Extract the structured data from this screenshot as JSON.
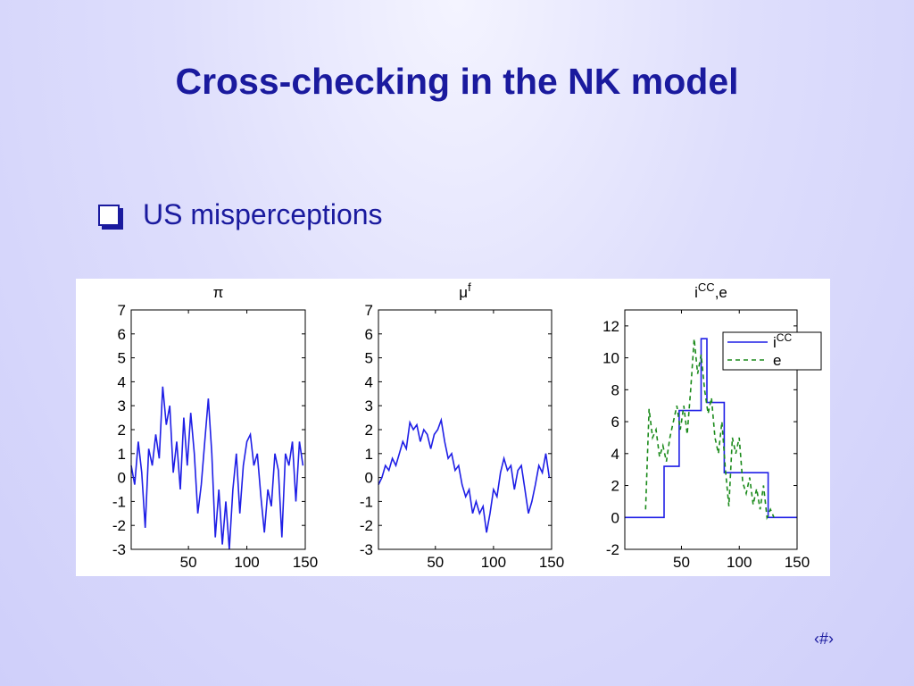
{
  "slide": {
    "title": "Cross-checking in the NK model",
    "bullet": "US misperceptions",
    "footer": "‹#›"
  },
  "chart_data": [
    {
      "type": "line",
      "title": [
        {
          "text": "π",
          "sup": false
        }
      ],
      "xlim": [
        1,
        150
      ],
      "xticks": [
        50,
        100,
        150
      ],
      "ylim": [
        -3,
        7
      ],
      "yticks": [
        -3,
        -2,
        -1,
        0,
        1,
        2,
        3,
        4,
        5,
        6,
        7
      ],
      "series": [
        {
          "color": "#1f1fe6",
          "dash": false,
          "x": [
            1,
            4,
            7,
            10,
            13,
            16,
            19,
            22,
            25,
            28,
            31,
            34,
            37,
            40,
            43,
            46,
            49,
            52,
            55,
            58,
            61,
            64,
            67,
            70,
            73,
            76,
            79,
            82,
            85,
            88,
            91,
            94,
            97,
            100,
            103,
            106,
            109,
            112,
            115,
            118,
            121,
            124,
            127,
            130,
            133,
            136,
            139,
            142,
            145,
            148
          ],
          "values": [
            0.5,
            -0.3,
            1.5,
            0.2,
            -2.1,
            1.2,
            0.5,
            1.8,
            0.8,
            3.8,
            2.2,
            3.0,
            0.2,
            1.5,
            -0.5,
            2.5,
            0.5,
            2.7,
            1.0,
            -1.5,
            -0.3,
            1.5,
            3.3,
            1.0,
            -2.5,
            -0.5,
            -2.8,
            -1.0,
            -3.0,
            -0.5,
            1.0,
            -1.5,
            0.5,
            1.5,
            1.8,
            0.5,
            1.0,
            -0.8,
            -2.3,
            -0.5,
            -1.2,
            1.0,
            0.3,
            -2.5,
            1.0,
            0.5,
            1.5,
            -1.0,
            1.5,
            0.5
          ]
        }
      ]
    },
    {
      "type": "line",
      "title": [
        {
          "text": "μ",
          "sup": false
        },
        {
          "text": "f",
          "sup": true
        }
      ],
      "xlim": [
        1,
        150
      ],
      "xticks": [
        50,
        100,
        150
      ],
      "ylim": [
        -3,
        7
      ],
      "yticks": [
        -3,
        -2,
        -1,
        0,
        1,
        2,
        3,
        4,
        5,
        6,
        7
      ],
      "series": [
        {
          "color": "#1f1fe6",
          "dash": false,
          "x": [
            1,
            4,
            7,
            10,
            13,
            16,
            19,
            22,
            25,
            28,
            31,
            34,
            37,
            40,
            43,
            46,
            49,
            52,
            55,
            58,
            61,
            64,
            67,
            70,
            73,
            76,
            79,
            82,
            85,
            88,
            91,
            94,
            97,
            100,
            103,
            106,
            109,
            112,
            115,
            118,
            121,
            124,
            127,
            130,
            133,
            136,
            139,
            142,
            145,
            148
          ],
          "values": [
            -0.3,
            0.0,
            0.5,
            0.3,
            0.8,
            0.5,
            1.0,
            1.5,
            1.2,
            2.3,
            2.0,
            2.2,
            1.5,
            2.0,
            1.8,
            1.2,
            1.8,
            2.0,
            2.4,
            1.5,
            0.8,
            1.0,
            0.3,
            0.5,
            -0.3,
            -0.8,
            -0.5,
            -1.5,
            -1.0,
            -1.5,
            -1.2,
            -2.3,
            -1.5,
            -0.5,
            -0.8,
            0.2,
            0.8,
            0.3,
            0.5,
            -0.5,
            0.3,
            0.5,
            -0.5,
            -1.5,
            -1.0,
            -0.3,
            0.5,
            0.2,
            1.0,
            0.0
          ]
        }
      ]
    },
    {
      "type": "line",
      "title": [
        {
          "text": "i",
          "sup": false
        },
        {
          "text": "CC",
          "sup": true
        },
        {
          "text": ",e",
          "sup": false
        }
      ],
      "xlim": [
        1,
        150
      ],
      "xticks": [
        50,
        100,
        150
      ],
      "ylim": [
        -2,
        13
      ],
      "yticks": [
        -2,
        0,
        2,
        4,
        6,
        8,
        10,
        12
      ],
      "legend": "upper right",
      "series": [
        {
          "name": "i",
          "name_sup": "CC",
          "color": "#1f1fe6",
          "dash": false,
          "x": [
            1,
            35,
            35,
            48,
            48,
            67,
            67,
            72,
            72,
            87,
            87,
            125,
            125,
            150
          ],
          "values": [
            0,
            0,
            3.2,
            3.2,
            6.7,
            6.7,
            11.2,
            11.2,
            7.2,
            7.2,
            2.8,
            2.8,
            0,
            0
          ]
        },
        {
          "name": "e",
          "color": "#1a8a1a",
          "dash": true,
          "x": [
            19,
            22,
            25,
            28,
            31,
            34,
            37,
            40,
            43,
            46,
            49,
            52,
            55,
            58,
            61,
            64,
            67,
            70,
            73,
            76,
            79,
            82,
            85,
            88,
            91,
            94,
            97,
            100,
            103,
            106,
            109,
            112,
            115,
            118,
            121,
            124,
            127,
            130
          ],
          "values": [
            0.5,
            6.8,
            5.0,
            5.5,
            3.8,
            4.5,
            3.5,
            5.0,
            6.0,
            7.0,
            5.5,
            7.0,
            5.2,
            8.0,
            11.2,
            9.0,
            10.2,
            8.0,
            6.5,
            7.5,
            5.0,
            4.0,
            6.0,
            3.0,
            0.7,
            5.0,
            4.0,
            5.0,
            2.2,
            1.5,
            2.5,
            0.8,
            1.8,
            0.5,
            2.0,
            0.0,
            0.5,
            0.0
          ]
        }
      ]
    }
  ]
}
